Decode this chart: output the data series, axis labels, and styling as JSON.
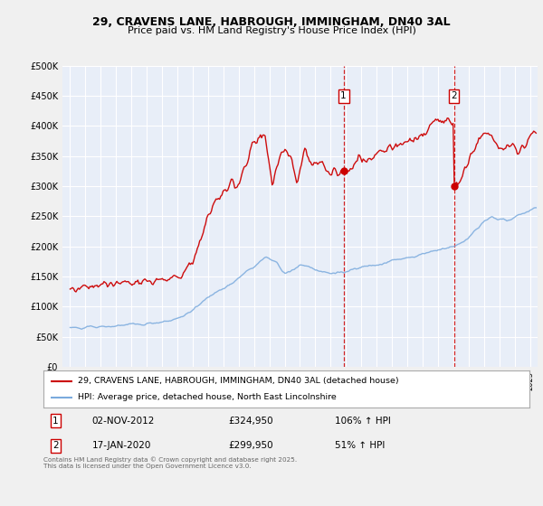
{
  "title_line1": "29, CRAVENS LANE, HABROUGH, IMMINGHAM, DN40 3AL",
  "title_line2": "Price paid vs. HM Land Registry's House Price Index (HPI)",
  "ylabel_ticks": [
    "£0",
    "£50K",
    "£100K",
    "£150K",
    "£200K",
    "£250K",
    "£300K",
    "£350K",
    "£400K",
    "£450K",
    "£500K"
  ],
  "ytick_values": [
    0,
    50000,
    100000,
    150000,
    200000,
    250000,
    300000,
    350000,
    400000,
    450000,
    500000
  ],
  "price_color": "#cc0000",
  "hpi_color": "#7aaadd",
  "vline_color": "#cc0000",
  "dot_color": "#cc0000",
  "annotation1": {
    "label": "1",
    "date": "02-NOV-2012",
    "price": "£324,950",
    "hpi": "106% ↑ HPI",
    "x_year": 2012.84,
    "y_val": 325000
  },
  "annotation2": {
    "label": "2",
    "date": "17-JAN-2020",
    "price": "£299,950",
    "hpi": "51% ↑ HPI",
    "x_year": 2020.04,
    "y_val": 300000
  },
  "legend_line1": "29, CRAVENS LANE, HABROUGH, IMMINGHAM, DN40 3AL (detached house)",
  "legend_line2": "HPI: Average price, detached house, North East Lincolnshire",
  "footer": "Contains HM Land Registry data © Crown copyright and database right 2025.\nThis data is licensed under the Open Government Licence v3.0.",
  "background_color": "#f0f0f0",
  "plot_bg_color": "#e8eef8",
  "xlim": [
    1994.5,
    2025.5
  ],
  "ylim": [
    0,
    500000
  ],
  "fig_bg": "#f0f0f0"
}
